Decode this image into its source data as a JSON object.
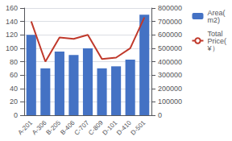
{
  "chart_data": {
    "type": "bar",
    "categories": [
      "A-201",
      "A-306",
      "B-205",
      "B-406",
      "C-707",
      "C-809",
      "D-101",
      "D-410",
      "D-501"
    ],
    "series": [
      {
        "name": "Area(\nm2)",
        "type": "bar",
        "color": "#4472C4",
        "values": [
          120,
          70,
          95,
          90,
          100,
          70,
          73,
          83,
          150
        ]
      },
      {
        "name": "Total\nPrice(\n¥）",
        "type": "line",
        "color": "#C0392B",
        "axis": "y2",
        "values": [
          700000,
          400000,
          580000,
          570000,
          600000,
          420000,
          430000,
          500000,
          730000
        ]
      }
    ],
    "ylim": [
      0,
      160
    ],
    "yticks": [
      0,
      20,
      40,
      60,
      80,
      100,
      120,
      140,
      160
    ],
    "y2lim": [
      0,
      800000
    ],
    "y2ticks": [
      0,
      100000,
      200000,
      300000,
      400000,
      500000,
      600000,
      700000,
      800000
    ],
    "grid": true,
    "legend": "right"
  }
}
